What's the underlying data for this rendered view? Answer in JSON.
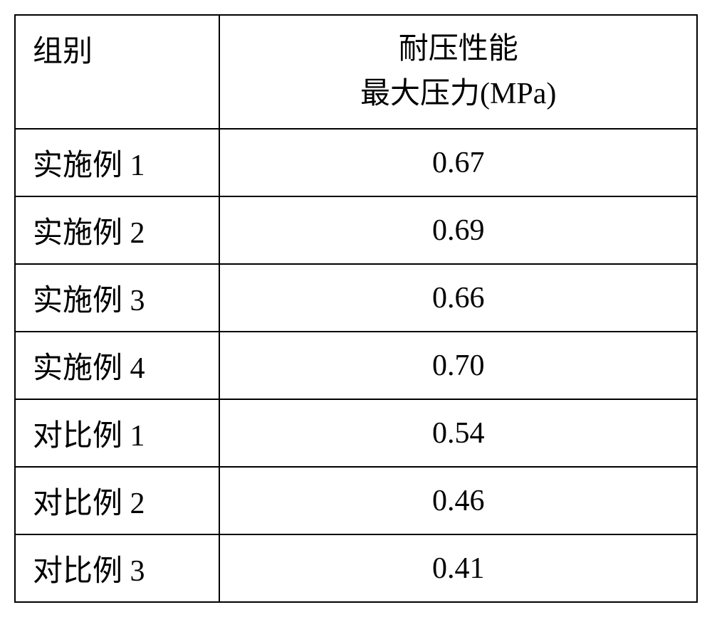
{
  "table": {
    "type": "table",
    "background_color": "#ffffff",
    "border_color": "#000000",
    "border_width": 2,
    "text_color": "#000000",
    "font_size": 42,
    "font_family": "SimSun",
    "columns": [
      {
        "key": "group",
        "header": "组别",
        "width_percent": 30,
        "alignment": "left"
      },
      {
        "key": "value",
        "header_line1": "耐压性能",
        "header_line2": "最大压力(MPa)",
        "width_percent": 70,
        "alignment": "center"
      }
    ],
    "rows": [
      {
        "group": "实施例 1",
        "value": "0.67"
      },
      {
        "group": "实施例 2",
        "value": "0.69"
      },
      {
        "group": "实施例 3",
        "value": "0.66"
      },
      {
        "group": "实施例 4",
        "value": "0.70"
      },
      {
        "group": "对比例 1",
        "value": "0.54"
      },
      {
        "group": "对比例 2",
        "value": "0.46"
      },
      {
        "group": "对比例 3",
        "value": "0.41"
      }
    ]
  }
}
